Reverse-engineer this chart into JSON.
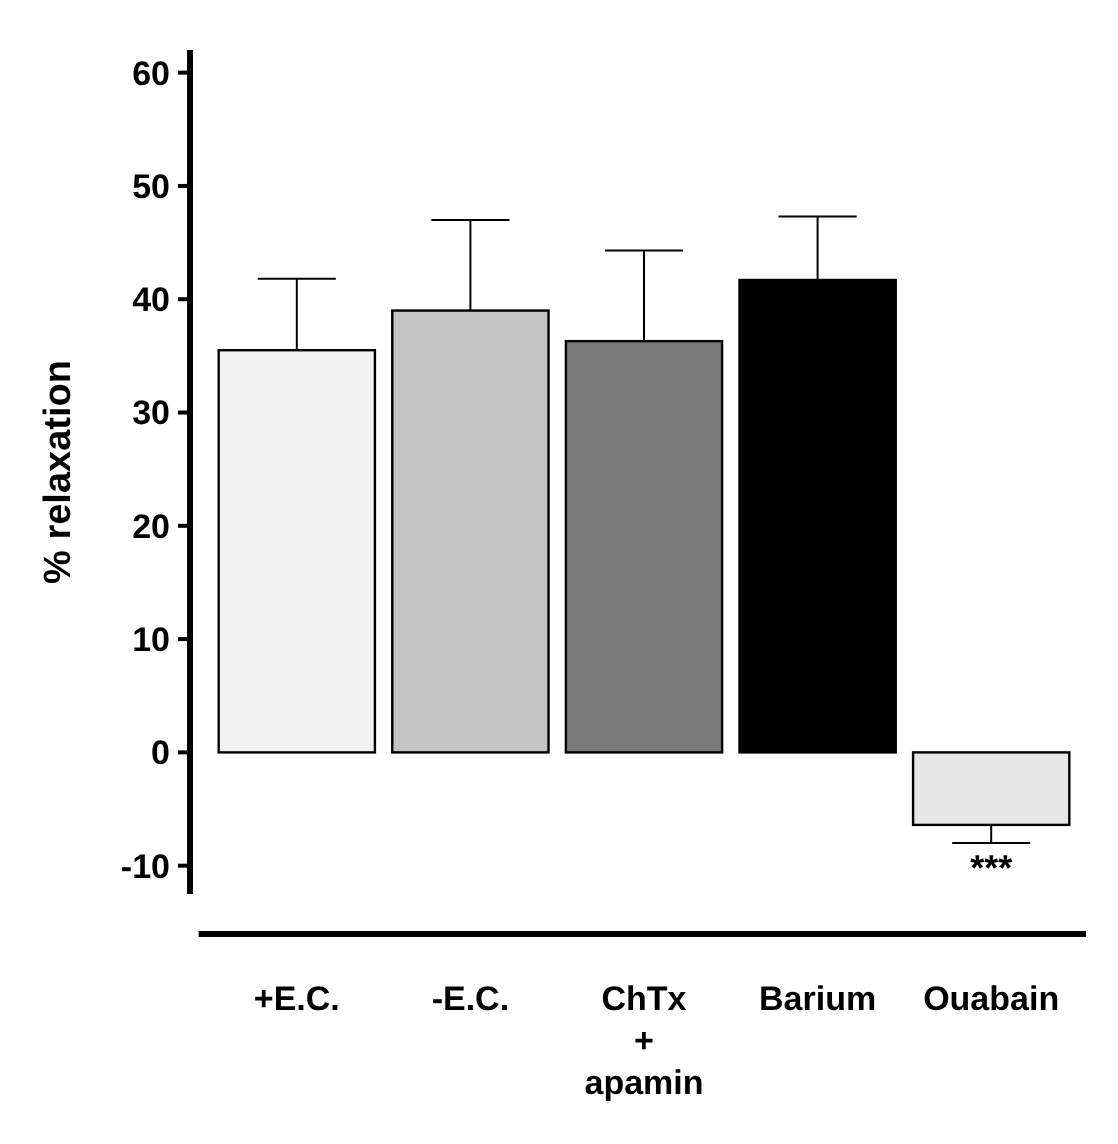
{
  "chart_data": {
    "type": "bar",
    "ylabel": "% relaxation",
    "categories": [
      "+E.C.",
      "-E.C.",
      "ChTx\n+\napamin",
      "Barium",
      "Ouabain"
    ],
    "values": [
      35.5,
      39,
      36.3,
      41.7,
      -6.4
    ],
    "colors": [
      "#f2f2f2",
      "#c4c4c4",
      "#7a7a7a",
      "#000000",
      "#e6e6e6"
    ],
    "errors": [
      [
        35.5,
        41.8
      ],
      [
        39,
        47
      ],
      [
        36.3,
        44.3
      ],
      [
        41.7,
        47.3
      ],
      [
        -8,
        -6.4
      ]
    ],
    "ylim": [
      -12.5,
      62
    ],
    "yticks": [
      -10,
      0,
      10,
      20,
      30,
      40,
      50,
      60
    ],
    "annotations": [
      {
        "text": "***",
        "x": "Ouabain",
        "y": -8
      }
    ]
  }
}
